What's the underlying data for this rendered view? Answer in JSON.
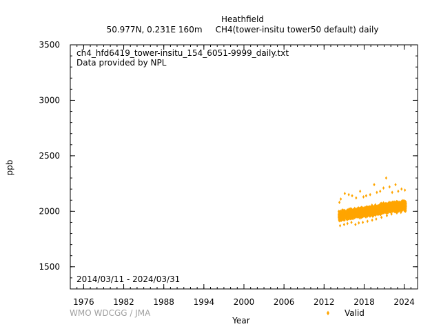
{
  "header": {
    "title": "Heathfield",
    "subtitle": "50.977N, 0.231E 160m     CH4(tower-insitu tower50 default) daily"
  },
  "annotations": {
    "filename": "ch4_hfd6419_tower-insitu_154_6051-9999_daily.txt",
    "provider": "Data provided by NPL",
    "date_range": "2014/03/11 - 2024/03/31"
  },
  "footer": {
    "credit": "WMO WDCGG / JMA"
  },
  "chart_data": {
    "type": "scatter",
    "title": "Heathfield",
    "subtitle": "50.977N, 0.231E 160m     CH4(tower-insitu tower50 default) daily",
    "xlabel": "Year",
    "ylabel": "ppb",
    "xlim": [
      1974.0,
      2026.0
    ],
    "ylim": [
      1300,
      3500
    ],
    "x_ticks": [
      1976,
      1982,
      1988,
      1994,
      2000,
      2006,
      2012,
      2018,
      2024
    ],
    "x_tick_labels": [
      "1976",
      "1982",
      "1988",
      "1994",
      "2000",
      "2006",
      "2012",
      "2018",
      "2024"
    ],
    "y_ticks": [
      1500,
      2000,
      2500,
      3000,
      3500
    ],
    "y_tick_labels": [
      "1500",
      "2000",
      "2500",
      "3000",
      "3500"
    ],
    "x_minor_step": 1,
    "y_minor_step": 100,
    "grid": false,
    "legend": {
      "position": "bottom-right"
    },
    "series": [
      {
        "name": "Valid",
        "color": "#ffa500",
        "start": "2014-03-11",
        "end": "2024-03-31",
        "trend": [
          [
            2014.2,
            1955
          ],
          [
            2015.0,
            1965
          ],
          [
            2016.0,
            1975
          ],
          [
            2017.0,
            1985
          ],
          [
            2018.0,
            1993
          ],
          [
            2019.0,
            2002
          ],
          [
            2020.0,
            2012
          ],
          [
            2021.0,
            2024
          ],
          [
            2022.0,
            2036
          ],
          [
            2023.0,
            2044
          ],
          [
            2024.25,
            2050
          ]
        ],
        "spread": 55,
        "points": [
          [
            2014.3,
            2080
          ],
          [
            2014.5,
            2110
          ],
          [
            2015.1,
            2160
          ],
          [
            2015.7,
            2150
          ],
          [
            2016.2,
            2140
          ],
          [
            2016.8,
            2120
          ],
          [
            2017.4,
            2180
          ],
          [
            2017.9,
            2130
          ],
          [
            2018.3,
            2140
          ],
          [
            2018.9,
            2150
          ],
          [
            2019.5,
            2240
          ],
          [
            2019.9,
            2170
          ],
          [
            2020.4,
            2180
          ],
          [
            2020.9,
            2210
          ],
          [
            2021.3,
            2300
          ],
          [
            2021.8,
            2220
          ],
          [
            2022.2,
            2170
          ],
          [
            2022.7,
            2240
          ],
          [
            2023.1,
            2180
          ],
          [
            2023.6,
            2200
          ],
          [
            2024.1,
            2190
          ],
          [
            2014.4,
            1870
          ],
          [
            2015.0,
            1880
          ],
          [
            2015.5,
            1890
          ],
          [
            2016.1,
            1900
          ],
          [
            2016.7,
            1880
          ],
          [
            2017.2,
            1895
          ],
          [
            2017.8,
            1900
          ],
          [
            2018.5,
            1910
          ],
          [
            2019.2,
            1920
          ],
          [
            2019.8,
            1930
          ],
          [
            2020.6,
            1945
          ],
          [
            2021.4,
            1960
          ],
          [
            2022.1,
            1975
          ],
          [
            2022.9,
            1985
          ],
          [
            2023.5,
            1990
          ],
          [
            2024.2,
            2000
          ]
        ]
      }
    ]
  }
}
